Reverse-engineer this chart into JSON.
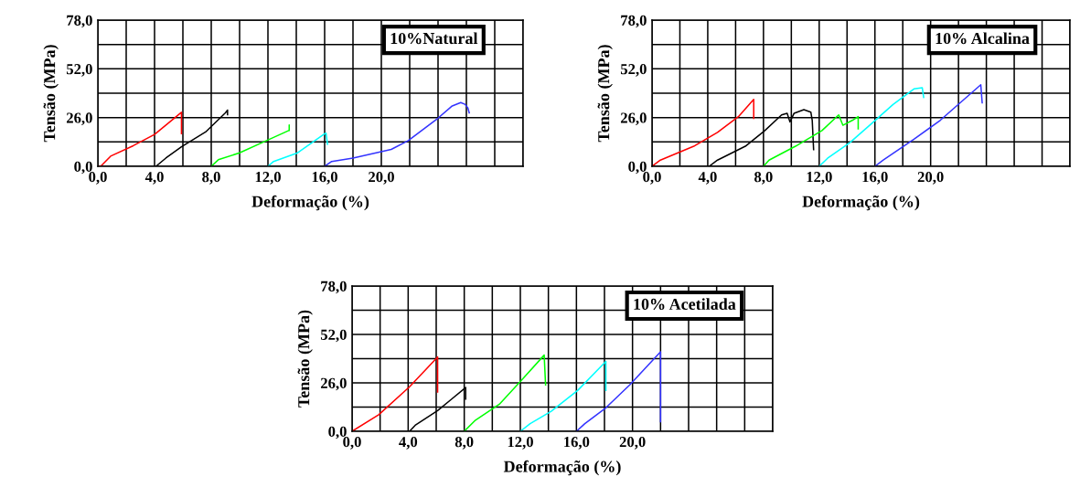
{
  "chart_data": [
    {
      "type": "line",
      "title": "10%Natural",
      "xlabel": "Deformação (%)",
      "ylabel": "Tensão (MPa)",
      "xlim": [
        0,
        30
      ],
      "ylim": [
        0,
        78
      ],
      "grid": true,
      "marker": "none",
      "line_style": "solid",
      "xticks": [
        {
          "value": 0,
          "label": "0,0"
        },
        {
          "value": 2,
          "label": null
        },
        {
          "value": 4,
          "label": "4,0"
        },
        {
          "value": 6,
          "label": null
        },
        {
          "value": 8,
          "label": "8,0"
        },
        {
          "value": 10,
          "label": null
        },
        {
          "value": 12,
          "label": "12,0"
        },
        {
          "value": 14,
          "label": null
        },
        {
          "value": 16,
          "label": "16,0"
        },
        {
          "value": 18,
          "label": null
        },
        {
          "value": 20,
          "label": "20,0"
        },
        {
          "value": 22,
          "label": null
        },
        {
          "value": 24,
          "label": null
        },
        {
          "value": 26,
          "label": null
        },
        {
          "value": 28,
          "label": null
        },
        {
          "value": 30,
          "label": null
        }
      ],
      "yticks": [
        {
          "value": 0,
          "label": "0,0"
        },
        {
          "value": 13,
          "label": null
        },
        {
          "value": 26,
          "label": "26,0"
        },
        {
          "value": 39,
          "label": null
        },
        {
          "value": 52,
          "label": "52,0"
        },
        {
          "value": 65,
          "label": null
        },
        {
          "value": 78,
          "label": "78,0"
        }
      ],
      "series": [
        {
          "color": "#ff0000",
          "x": [
            0,
            0.2,
            0.9,
            2.5,
            4,
            5.9,
            5.9
          ],
          "values": [
            0,
            0,
            5.4,
            11,
            17,
            28.8,
            17.4
          ]
        },
        {
          "color": "#000000",
          "x": [
            4.1,
            4.8,
            5.9,
            7.6,
            9.0,
            9.15,
            9.15
          ],
          "values": [
            0,
            4.4,
            10.4,
            18.3,
            28.5,
            30,
            27.5
          ]
        },
        {
          "color": "#00ff00",
          "x": [
            8.0,
            8.5,
            10.0,
            11.9,
            13.5,
            13.5,
            13.5
          ],
          "values": [
            0,
            3.5,
            7.2,
            13.7,
            19.2,
            22,
            19.2
          ]
        },
        {
          "color": "#00ffff",
          "x": [
            12.0,
            12.4,
            14.1,
            16.0,
            16.1,
            16.2
          ],
          "values": [
            0,
            2.6,
            7.2,
            17.4,
            17.7,
            11.8
          ]
        },
        {
          "color": "#3333ff",
          "x": [
            16.0,
            16.5,
            18.0,
            20.7,
            21.9,
            24.0,
            25.0,
            25.6,
            25.9,
            26.1,
            26.2
          ],
          "values": [
            0,
            2.6,
            4.4,
            9,
            13.7,
            25.7,
            32.2,
            34,
            33.1,
            31.2,
            28.5
          ]
        }
      ]
    },
    {
      "type": "line",
      "title": "10% Alcalina",
      "xlabel": "Deformação (%)",
      "ylabel": "Tensão (MPa)",
      "xlim": [
        0,
        30
      ],
      "ylim": [
        0,
        78
      ],
      "grid": true,
      "marker": "none",
      "line_style": "solid",
      "xticks": [
        {
          "value": 0,
          "label": "0,0"
        },
        {
          "value": 2,
          "label": null
        },
        {
          "value": 4,
          "label": "4,0"
        },
        {
          "value": 6,
          "label": null
        },
        {
          "value": 8,
          "label": "8,0"
        },
        {
          "value": 10,
          "label": null
        },
        {
          "value": 12,
          "label": "12,0"
        },
        {
          "value": 14,
          "label": null
        },
        {
          "value": 16,
          "label": "16,0"
        },
        {
          "value": 18,
          "label": null
        },
        {
          "value": 20,
          "label": "20,0"
        },
        {
          "value": 22,
          "label": null
        },
        {
          "value": 24,
          "label": null
        },
        {
          "value": 26,
          "label": null
        },
        {
          "value": 28,
          "label": null
        },
        {
          "value": 30,
          "label": null
        }
      ],
      "yticks": [
        {
          "value": 0,
          "label": "0,0"
        },
        {
          "value": 13,
          "label": null
        },
        {
          "value": 26,
          "label": "26,0"
        },
        {
          "value": 39,
          "label": null
        },
        {
          "value": 52,
          "label": "52,0"
        },
        {
          "value": 65,
          "label": null
        },
        {
          "value": 78,
          "label": "78,0"
        }
      ],
      "series": [
        {
          "color": "#ff0000",
          "x": [
            0,
            0.6,
            3.0,
            4.7,
            6.2,
            7.3,
            7.3
          ],
          "values": [
            0,
            3.3,
            10.7,
            18.1,
            26.5,
            35.7,
            25.6
          ]
        },
        {
          "color": "#000000",
          "x": [
            4.1,
            4.7,
            6.7,
            8.1,
            9.3,
            9.7,
            9.9,
            10.2,
            10.9,
            11.4,
            11.5,
            11.6
          ],
          "values": [
            0,
            3.3,
            10.7,
            19.1,
            27.4,
            28.3,
            23.7,
            28.3,
            30.2,
            28.9,
            24.6,
            8.9
          ]
        },
        {
          "color": "#00ff00",
          "x": [
            8.0,
            8.4,
            10.3,
            12.2,
            13.4,
            13.7,
            14.4,
            14.8,
            14.8
          ],
          "values": [
            0,
            3.3,
            10.7,
            19.1,
            27.4,
            21.9,
            24.6,
            26.5,
            20
          ]
        },
        {
          "color": "#00ffff",
          "x": [
            12.0,
            12.6,
            14.2,
            15.9,
            17.3,
            18.8,
            19.4,
            19.5
          ],
          "values": [
            0,
            4.3,
            12.6,
            23.7,
            33,
            41.3,
            41.9,
            36.7
          ]
        },
        {
          "color": "#3333ff",
          "x": [
            16.0,
            16.6,
            18.8,
            20.7,
            22.4,
            23.6,
            23.7
          ],
          "values": [
            0,
            3.3,
            14.4,
            24.6,
            35.7,
            43.5,
            33.9
          ]
        }
      ]
    },
    {
      "type": "line",
      "title": "10% Acetilada",
      "xlabel": "Deformação (%)",
      "ylabel": "Tensão (MPa)",
      "xlim": [
        0,
        30
      ],
      "ylim": [
        0,
        78
      ],
      "grid": true,
      "marker": "none",
      "line_style": "solid",
      "xticks": [
        {
          "value": 0,
          "label": "0,0"
        },
        {
          "value": 2,
          "label": null
        },
        {
          "value": 4,
          "label": "4,0"
        },
        {
          "value": 6,
          "label": null
        },
        {
          "value": 8,
          "label": "8,0"
        },
        {
          "value": 10,
          "label": null
        },
        {
          "value": 12,
          "label": "12,0"
        },
        {
          "value": 14,
          "label": null
        },
        {
          "value": 16,
          "label": "16,0"
        },
        {
          "value": 18,
          "label": null
        },
        {
          "value": 20,
          "label": "20,0"
        },
        {
          "value": 22,
          "label": null
        },
        {
          "value": 24,
          "label": null
        },
        {
          "value": 26,
          "label": null
        },
        {
          "value": 28,
          "label": null
        },
        {
          "value": 30,
          "label": null
        }
      ],
      "yticks": [
        {
          "value": 0,
          "label": "0,0"
        },
        {
          "value": 13,
          "label": null
        },
        {
          "value": 26,
          "label": "26,0"
        },
        {
          "value": 39,
          "label": null
        },
        {
          "value": 52,
          "label": "52,0"
        },
        {
          "value": 65,
          "label": null
        },
        {
          "value": 78,
          "label": "78,0"
        }
      ],
      "series": [
        {
          "color": "#ff0000",
          "x": [
            0,
            1.9,
            4.1,
            6.1,
            6.1
          ],
          "values": [
            0,
            8.9,
            23.9,
            39.9,
            21.1
          ]
        },
        {
          "color": "#000000",
          "x": [
            4.1,
            4.5,
            6.1,
            7.1,
            8.1,
            8.1
          ],
          "values": [
            0,
            3.2,
            11.1,
            17.3,
            23.5,
            17.3
          ]
        },
        {
          "color": "#00ff00",
          "x": [
            8.0,
            8.8,
            10.5,
            12.0,
            13.7,
            13.8
          ],
          "values": [
            0,
            6,
            14.5,
            26.7,
            40.9,
            24.9
          ]
        },
        {
          "color": "#00ffff",
          "x": [
            12.0,
            12.7,
            14.2,
            16.1,
            18.1,
            18.1
          ],
          "values": [
            0,
            4.1,
            10.7,
            22,
            37.5,
            22
          ]
        },
        {
          "color": "#3333ff",
          "x": [
            16.0,
            16.6,
            18.1,
            19.8,
            22.0,
            22.0
          ],
          "values": [
            0,
            4.1,
            12.6,
            24.9,
            42.7,
            5.1
          ]
        }
      ]
    }
  ]
}
